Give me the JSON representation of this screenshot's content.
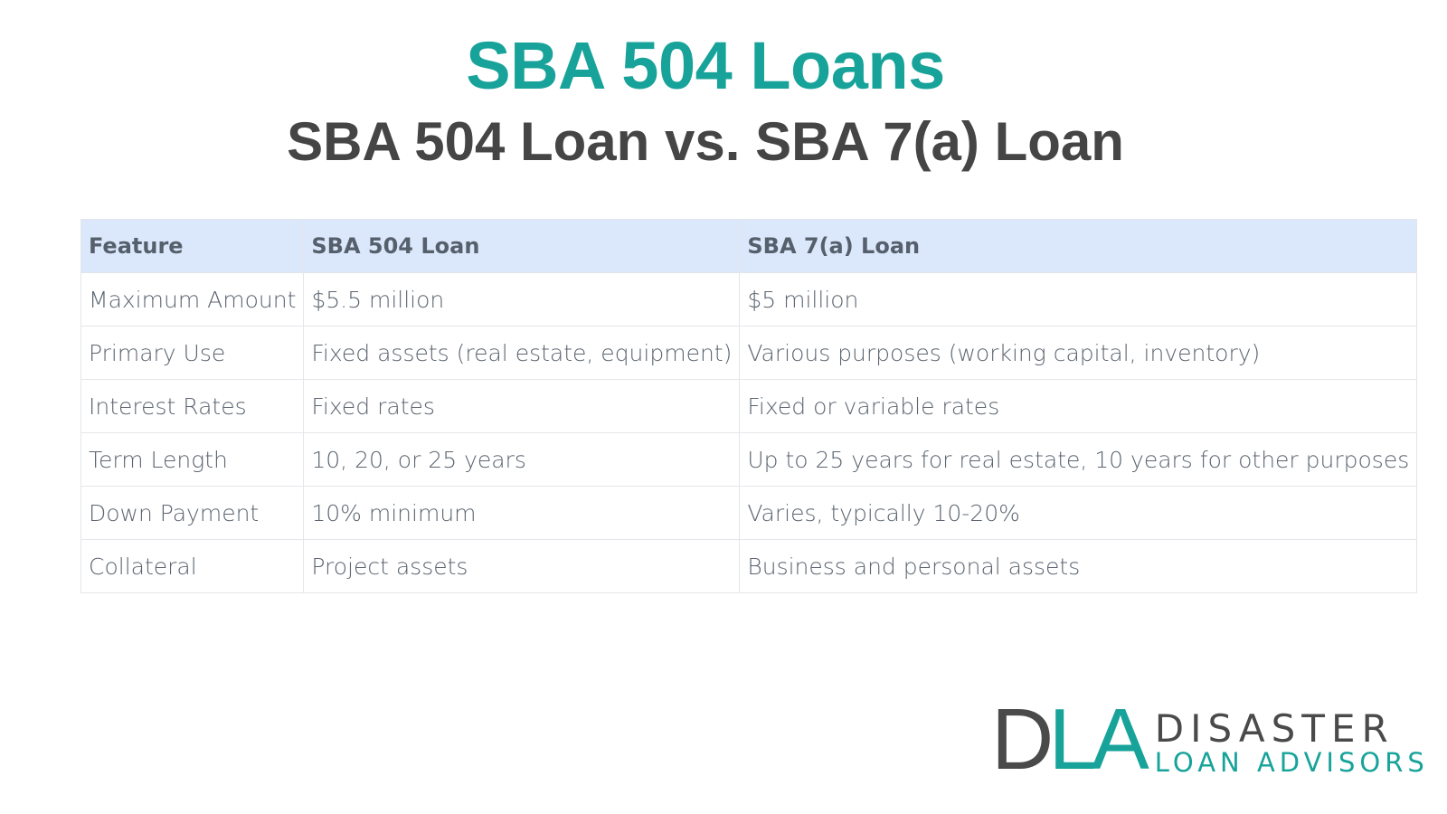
{
  "header": {
    "title": "SBA 504 Loans",
    "subtitle": "SBA 504 Loan vs. SBA 7(a) Loan"
  },
  "table": {
    "columns": [
      "Feature",
      "SBA 504 Loan",
      "SBA 7(a) Loan"
    ],
    "rows": [
      [
        "Maximum Amount",
        "$5.5 million",
        "$5 million"
      ],
      [
        "Primary Use",
        "Fixed assets (real estate, equipment)",
        "Various purposes (working capital, inventory)"
      ],
      [
        "Interest Rates",
        "Fixed rates",
        "Fixed or variable rates"
      ],
      [
        "Term Length",
        "10, 20, or 25 years",
        "Up to 25 years for real estate, 10 years for other purposes"
      ],
      [
        "Down Payment",
        "10% minimum",
        "Varies, typically 10-20%"
      ],
      [
        "Collateral",
        "Project assets",
        "Business and personal assets"
      ]
    ]
  },
  "logo": {
    "d": "D",
    "la": "LA",
    "line1": "DISASTER",
    "line2": "LOAN ADVISORS"
  },
  "colors": {
    "accent": "#17a39a",
    "dark": "#454545",
    "header_bg": "#dbe8fb"
  }
}
